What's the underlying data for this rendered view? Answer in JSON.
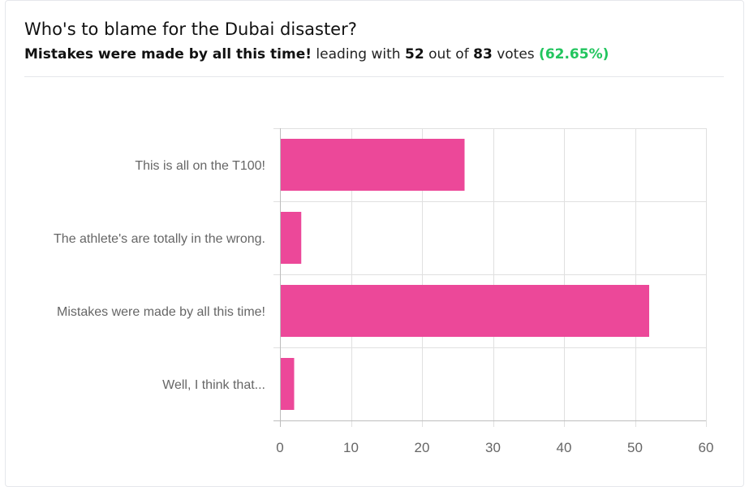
{
  "poll": {
    "title": "Who's to blame for the Dubai disaster?",
    "leader": "Mistakes were made by all this time!",
    "leading_with": "leading with",
    "leader_votes": "52",
    "out_of": "out of",
    "total_votes": "83",
    "votes_word": "votes",
    "leader_pct": "(62.65%)"
  },
  "colors": {
    "bar": "#ec4899",
    "grid": "#e0e0e0",
    "axis": "#bdbdbd",
    "pct": "#22c55e"
  },
  "chart_data": {
    "type": "bar",
    "orientation": "horizontal",
    "title": "Who's to blame for the Dubai disaster?",
    "categories": [
      "This is all on the T100!",
      "The athlete's are totally in the wrong.",
      "Mistakes were made by all this time!",
      "Well, I think that..."
    ],
    "values": [
      26,
      3,
      52,
      2
    ],
    "xlim": [
      0,
      60
    ],
    "xticks": [
      0,
      10,
      20,
      30,
      40,
      50,
      60
    ],
    "xlabel": "",
    "ylabel": "",
    "grid": true,
    "legend": "none"
  }
}
